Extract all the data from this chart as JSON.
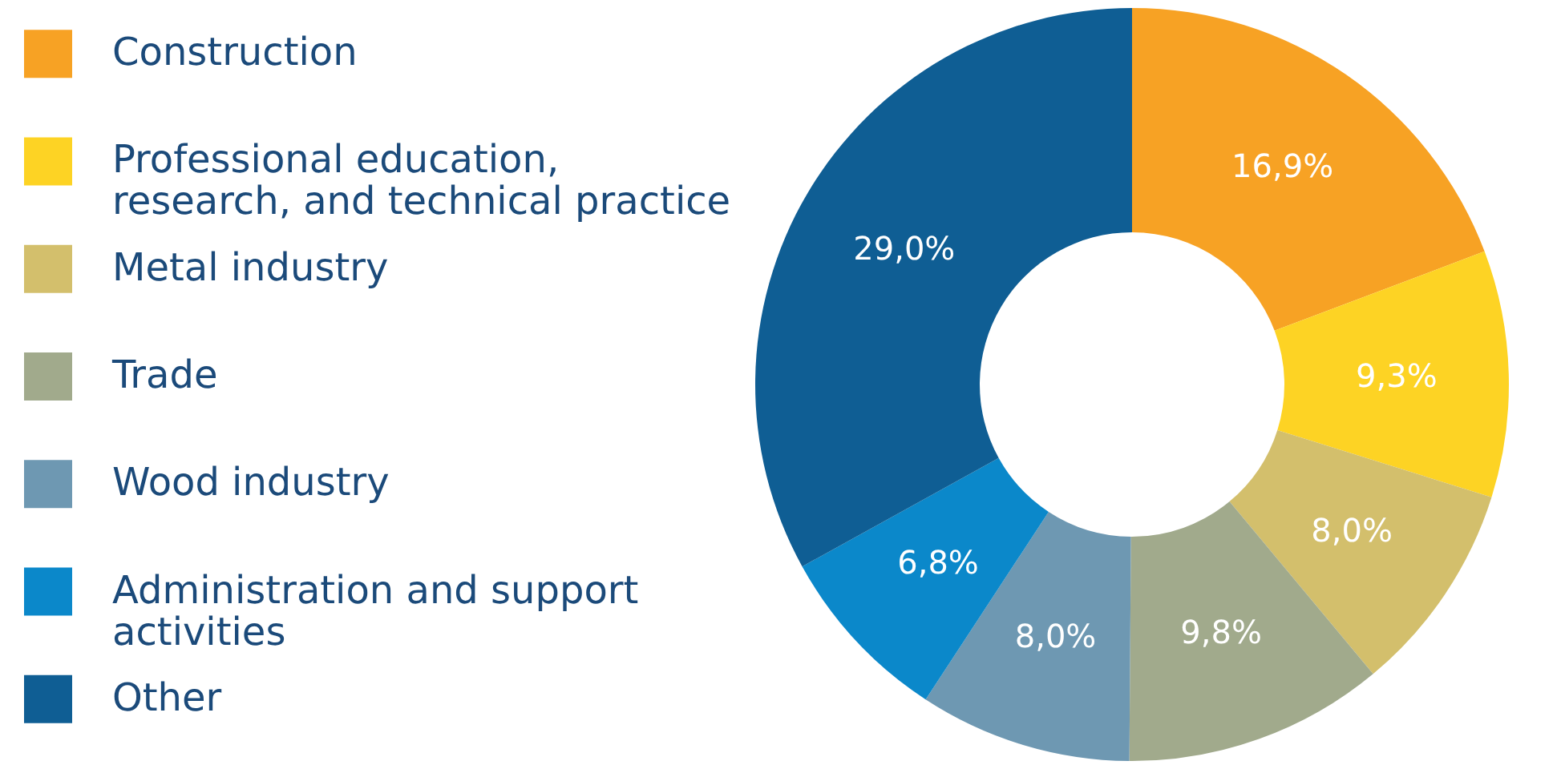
{
  "chart_data": {
    "type": "donut",
    "categories": [
      "Construction",
      "Professional education, research, and technical practice",
      "Metal industry",
      "Trade",
      "Wood industry",
      "Administration and support activities",
      "Other"
    ],
    "values": [
      16.9,
      9.3,
      8.0,
      9.8,
      8.0,
      6.8,
      29.0
    ],
    "value_labels": [
      "16,9%",
      "9,3%",
      "8,0%",
      "9,8%",
      "8,0%",
      "6,8%",
      "29,0%"
    ],
    "colors": [
      "#f7a224",
      "#fdd324",
      "#d3bf6c",
      "#a1aa8c",
      "#6e98b2",
      "#0b88ca",
      "#0f5e94"
    ],
    "legend": "left"
  }
}
